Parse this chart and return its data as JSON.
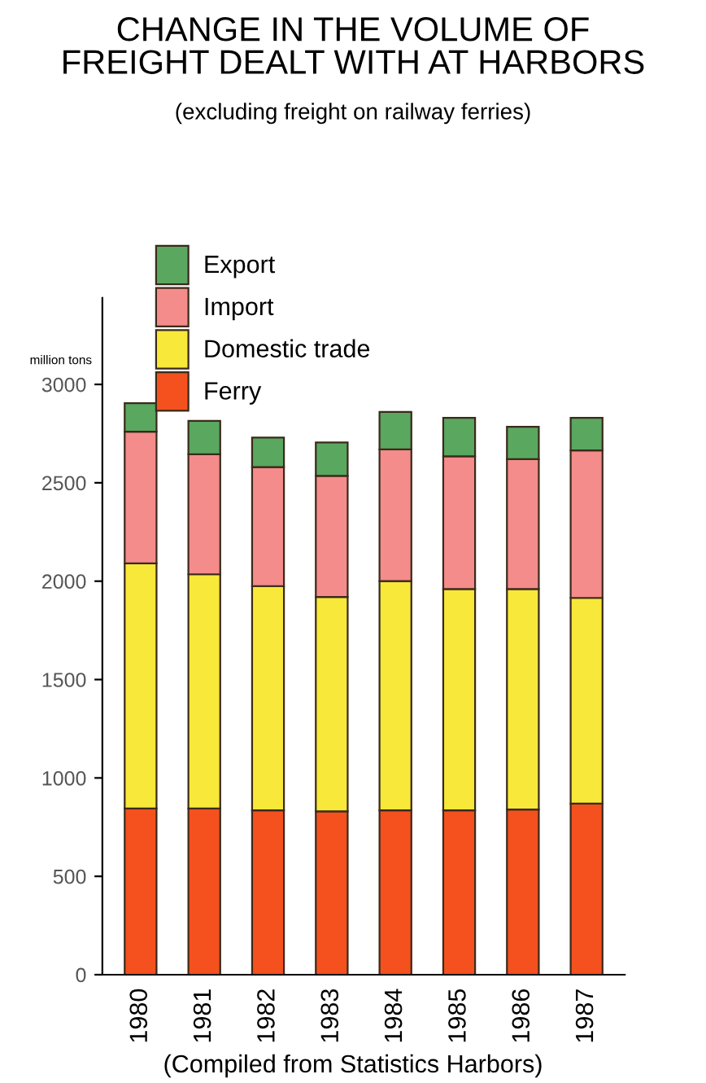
{
  "chart_data": {
    "type": "bar",
    "title": "CHANGE IN THE VOLUME OF\nFREIGHT DEALT WITH AT HARBORS",
    "subtitle": "(excluding freight on railway ferries)",
    "ylabel": "million tons",
    "annotations": [
      "(Compiled from Statistics Harbors)"
    ],
    "categories": [
      "1980",
      "1981",
      "1982",
      "1983",
      "1984",
      "1985",
      "1986",
      "1987"
    ],
    "stacked": true,
    "series": [
      {
        "name": "Ferry",
        "color": "#f4511e",
        "values": [
          845,
          845,
          835,
          830,
          835,
          835,
          840,
          870
        ]
      },
      {
        "name": "Domestic trade",
        "color": "#f8e83a",
        "values": [
          1245,
          1190,
          1140,
          1090,
          1165,
          1125,
          1120,
          1045
        ]
      },
      {
        "name": "Import",
        "color": "#f48c8c",
        "values": [
          670,
          610,
          605,
          615,
          670,
          675,
          660,
          750
        ]
      },
      {
        "name": "Export",
        "color": "#5aa760",
        "values": [
          145,
          170,
          150,
          170,
          190,
          195,
          165,
          165
        ]
      }
    ],
    "ylim": [
      0,
      3440
    ],
    "yticks": [
      0,
      500,
      1000,
      1500,
      2000,
      2500,
      3000
    ],
    "grid": false,
    "legend": "top left"
  }
}
